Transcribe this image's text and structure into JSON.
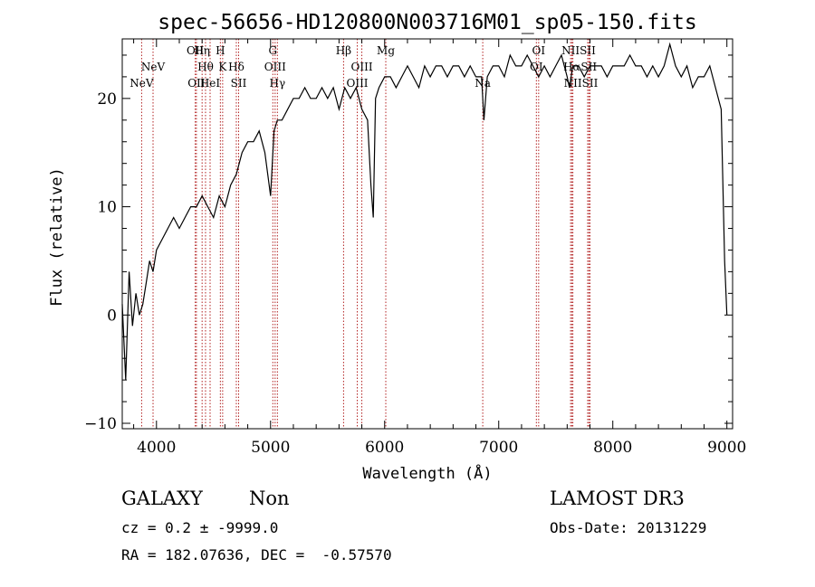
{
  "chart_data": {
    "type": "line",
    "title": "spec-56656-HD120800N003716M01_sp05-150.fits",
    "xlabel": "Wavelength (Å)",
    "ylabel": "Flux (relative)",
    "xlim": [
      3700,
      9050
    ],
    "ylim": [
      -10.5,
      25.5
    ],
    "x_ticks": [
      4000,
      5000,
      6000,
      7000,
      8000,
      9000
    ],
    "y_ticks": [
      -10,
      0,
      10,
      20
    ],
    "grid": false,
    "series": [
      {
        "x": [
          3700,
          3730,
          3760,
          3790,
          3820,
          3850,
          3880,
          3910,
          3940,
          3970,
          4000,
          4050,
          4100,
          4150,
          4200,
          4250,
          4300,
          4350,
          4400,
          4450,
          4500,
          4550,
          4600,
          4650,
          4700,
          4750,
          4800,
          4850,
          4900,
          4950,
          5000,
          5030,
          5060,
          5100,
          5150,
          5200,
          5250,
          5300,
          5350,
          5400,
          5450,
          5500,
          5550,
          5600,
          5650,
          5700,
          5750,
          5800,
          5850,
          5880,
          5900,
          5920,
          5950,
          6000,
          6050,
          6100,
          6150,
          6200,
          6250,
          6300,
          6350,
          6400,
          6450,
          6500,
          6550,
          6600,
          6650,
          6700,
          6750,
          6800,
          6850,
          6870,
          6900,
          6950,
          7000,
          7050,
          7100,
          7150,
          7200,
          7250,
          7300,
          7350,
          7400,
          7450,
          7500,
          7550,
          7600,
          7620,
          7650,
          7700,
          7750,
          7800,
          7850,
          7900,
          7950,
          8000,
          8050,
          8100,
          8150,
          8200,
          8250,
          8300,
          8350,
          8400,
          8450,
          8500,
          8550,
          8600,
          8650,
          8700,
          8750,
          8800,
          8850,
          8900,
          8950,
          8980,
          9000
        ],
        "y": [
          1,
          -6,
          4,
          -1,
          2,
          0,
          1,
          3,
          5,
          4,
          6,
          7,
          8,
          9,
          8,
          9,
          10,
          10,
          11,
          10,
          9,
          11,
          10,
          12,
          13,
          15,
          16,
          16,
          17,
          15,
          11,
          17,
          18,
          18,
          19,
          20,
          20,
          21,
          20,
          20,
          21,
          20,
          21,
          19,
          21,
          20,
          21,
          19,
          18,
          12,
          9,
          20,
          21,
          22,
          22,
          21,
          22,
          23,
          22,
          21,
          23,
          22,
          23,
          23,
          22,
          23,
          23,
          22,
          23,
          22,
          22,
          18,
          22,
          23,
          23,
          22,
          24,
          23,
          23,
          24,
          23,
          22,
          23,
          22,
          23,
          24,
          22,
          21,
          23,
          23,
          22,
          23,
          23,
          23,
          22,
          23,
          23,
          23,
          24,
          23,
          23,
          22,
          23,
          22,
          23,
          25,
          23,
          22,
          23,
          21,
          22,
          22,
          23,
          21,
          19,
          5,
          0
        ]
      }
    ],
    "lines": [
      {
        "label": "NeV",
        "x": 3870,
        "row": 3
      },
      {
        "label": "NeV",
        "x": 3970,
        "row": 2
      },
      {
        "label": "OII",
        "x": 4340,
        "row": 1
      },
      {
        "label": "OII",
        "x": 4350,
        "row": 3
      },
      {
        "label": "Hη",
        "x": 4400,
        "row": 1
      },
      {
        "label": "Hθ",
        "x": 4430,
        "row": 2
      },
      {
        "label": "HeI",
        "x": 4470,
        "row": 3
      },
      {
        "label": "H",
        "x": 4560,
        "row": 1
      },
      {
        "label": "K",
        "x": 4580,
        "row": 2
      },
      {
        "label": "Hδ",
        "x": 4700,
        "row": 2
      },
      {
        "label": "SII",
        "x": 4720,
        "row": 3
      },
      {
        "label": "G",
        "x": 5020,
        "row": 1
      },
      {
        "label": "OIII",
        "x": 5040,
        "row": 2
      },
      {
        "label": "Hγ",
        "x": 5060,
        "row": 3
      },
      {
        "label": "Hβ",
        "x": 5640,
        "row": 1
      },
      {
        "label": "OIII",
        "x": 5760,
        "row": 3
      },
      {
        "label": "OIII",
        "x": 5800,
        "row": 2
      },
      {
        "label": "Mg",
        "x": 6010,
        "row": 1
      },
      {
        "label": "Na",
        "x": 6860,
        "row": 3
      },
      {
        "label": "OI",
        "x": 7350,
        "row": 1
      },
      {
        "label": "OI",
        "x": 7330,
        "row": 2
      },
      {
        "label": "NII",
        "x": 7630,
        "row": 1
      },
      {
        "label": "Hα",
        "x": 7640,
        "row": 2
      },
      {
        "label": "NII",
        "x": 7650,
        "row": 3
      },
      {
        "label": "SII",
        "x": 7780,
        "row": 1
      },
      {
        "label": "SII",
        "x": 7790,
        "row": 2
      },
      {
        "label": "SII",
        "x": 7800,
        "row": 3
      }
    ]
  },
  "info": {
    "object_type": "GALAXY",
    "subclass": "Non",
    "survey": "LAMOST DR3",
    "cz": "cz = 0.2 ± -9999.0",
    "obs_date": "Obs-Date: 20131229",
    "coords": "RA = 182.07636, DEC =  -0.57570"
  }
}
